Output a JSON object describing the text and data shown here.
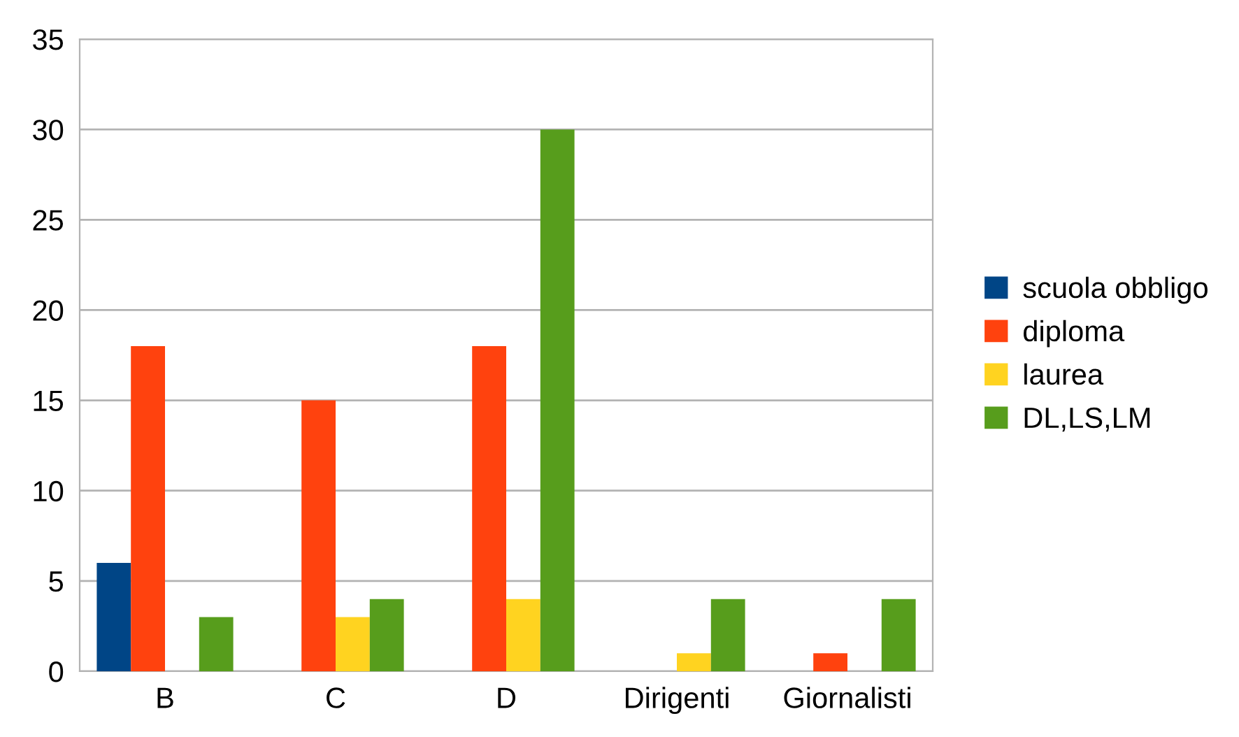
{
  "chart_data": {
    "type": "bar",
    "categories": [
      "B",
      "C",
      "D",
      "Dirigenti",
      "Giornalisti"
    ],
    "series": [
      {
        "name": "scuola obbligo",
        "color": "#004586",
        "values": [
          6,
          0,
          0,
          0,
          0
        ]
      },
      {
        "name": "diploma",
        "color": "#ff420e",
        "values": [
          18,
          15,
          18,
          0,
          1
        ]
      },
      {
        "name": "laurea",
        "color": "#ffd320",
        "values": [
          0,
          3,
          4,
          1,
          0
        ]
      },
      {
        "name": "DL,LS,LM",
        "color": "#579d1c",
        "values": [
          3,
          4,
          30,
          4,
          4
        ]
      }
    ],
    "ylim": [
      0,
      35
    ],
    "yticks": [
      0,
      5,
      10,
      15,
      20,
      25,
      30,
      35
    ],
    "grid": "y",
    "legend": "right"
  }
}
